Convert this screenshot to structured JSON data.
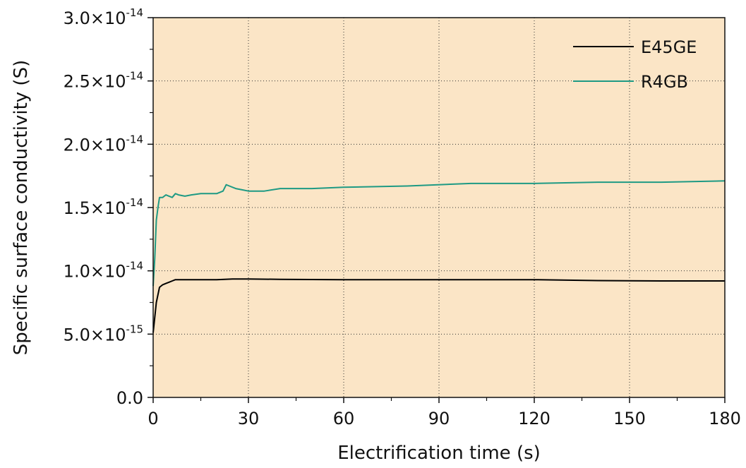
{
  "chart_data": {
    "type": "line",
    "title": "",
    "xlabel": "Electrification time (s)",
    "ylabel": "Specific surface conductivity (S)",
    "xlim": [
      0,
      180
    ],
    "ylim": [
      0,
      3e-14
    ],
    "x_ticks": [
      0,
      30,
      60,
      90,
      120,
      150,
      180
    ],
    "x_tick_labels": [
      "0",
      "30",
      "60",
      "90",
      "120",
      "150",
      "180"
    ],
    "y_ticks": [
      {
        "value": 0,
        "mantissa": "0.0",
        "exponent": ""
      },
      {
        "value": 5e-15,
        "mantissa": "5.0×10",
        "exponent": "-15"
      },
      {
        "value": 1e-14,
        "mantissa": "1.0×10",
        "exponent": "-14"
      },
      {
        "value": 1.5e-14,
        "mantissa": "1.5×10",
        "exponent": "-14"
      },
      {
        "value": 2e-14,
        "mantissa": "2.0×10",
        "exponent": "-14"
      },
      {
        "value": 2.5e-14,
        "mantissa": "2.5×10",
        "exponent": "-14"
      },
      {
        "value": 3e-14,
        "mantissa": "3.0×10",
        "exponent": "-14"
      }
    ],
    "grid": true,
    "plot_background": "#fbe5c6",
    "legend_position": "top-right",
    "series": [
      {
        "name": "E45GE",
        "color": "#000000",
        "x": [
          0,
          1,
          2,
          3,
          4,
          5,
          6,
          7,
          8,
          10,
          15,
          20,
          25,
          30,
          40,
          60,
          90,
          120,
          140,
          160,
          180
        ],
        "y": [
          5.1e-15,
          7.5e-15,
          8.7e-15,
          8.9e-15,
          9e-15,
          9.1e-15,
          9.2e-15,
          9.3e-15,
          9.3e-15,
          9.3e-15,
          9.3e-15,
          9.3e-15,
          9.35e-15,
          9.35e-15,
          9.33e-15,
          9.3e-15,
          9.3e-15,
          9.3e-15,
          9.23e-15,
          9.2e-15,
          9.2e-15
        ]
      },
      {
        "name": "R4GB",
        "color": "#1e9a84",
        "x": [
          0,
          0.5,
          1,
          1.5,
          2,
          3,
          4,
          5,
          6,
          7,
          8,
          10,
          12,
          15,
          18,
          20,
          22,
          23,
          24,
          26,
          28,
          30,
          35,
          40,
          50,
          60,
          80,
          100,
          120,
          140,
          160,
          180
        ],
        "y": [
          8.8e-15,
          1.1e-14,
          1.4e-14,
          1.5e-14,
          1.58e-14,
          1.58e-14,
          1.6e-14,
          1.59e-14,
          1.58e-14,
          1.61e-14,
          1.6e-14,
          1.59e-14,
          1.6e-14,
          1.61e-14,
          1.61e-14,
          1.61e-14,
          1.63e-14,
          1.68e-14,
          1.67e-14,
          1.65e-14,
          1.64e-14,
          1.63e-14,
          1.63e-14,
          1.65e-14,
          1.65e-14,
          1.66e-14,
          1.67e-14,
          1.69e-14,
          1.69e-14,
          1.7e-14,
          1.7e-14,
          1.71e-14
        ]
      }
    ]
  }
}
